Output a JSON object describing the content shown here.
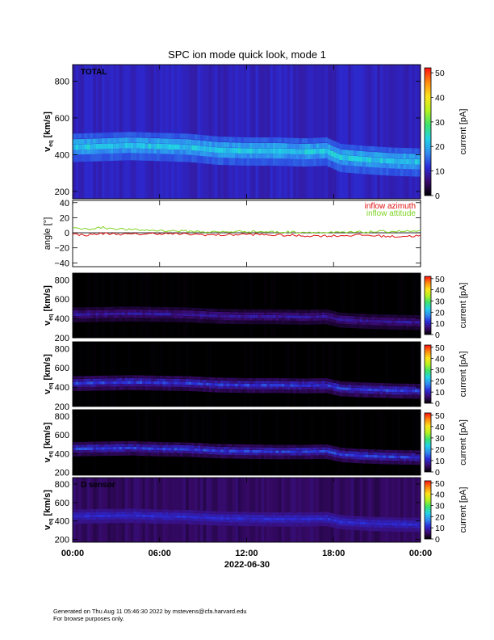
{
  "title": "SPC ion mode quick look, mode 1",
  "footer": {
    "line1": "Generated on Thu Aug 11 05:46:30 2022 by mstevens@cfa.harvard.edu",
    "line2": "For browse purposes only."
  },
  "colors": {
    "azimuth": "#e01010",
    "attitude": "#7ed321",
    "colormap": [
      "#000000",
      "#3a0a6e",
      "#2c2bd8",
      "#2f8df0",
      "#22d3e6",
      "#3de36a",
      "#b6f21e",
      "#ffe31a",
      "#ff8a10",
      "#ff1010"
    ]
  },
  "chart_data": [
    {
      "type": "heatmap",
      "panel": "total",
      "label": "TOTAL",
      "ylabel_main": "v",
      "ylabel_sub": "eq",
      "ylabel_unit": "[km/s]",
      "yticks": [
        "200",
        "400",
        "600",
        "800"
      ],
      "ylim": [
        160,
        890
      ],
      "colorbar": {
        "label": "current [pA]",
        "ticks": [
          "0",
          "10",
          "20",
          "30",
          "40",
          "50"
        ],
        "range": [
          0,
          52
        ]
      },
      "speed_trace_kms": [
        [
          0,
          440
        ],
        [
          2,
          445
        ],
        [
          4,
          450
        ],
        [
          6,
          445
        ],
        [
          8,
          440
        ],
        [
          10,
          425
        ],
        [
          12,
          420
        ],
        [
          14,
          420
        ],
        [
          16,
          415
        ],
        [
          17.5,
          420
        ],
        [
          18.5,
          385
        ],
        [
          20,
          375
        ],
        [
          22,
          365
        ],
        [
          24,
          360
        ]
      ],
      "background_pA": 10,
      "peak_pA": 22
    },
    {
      "type": "line",
      "panel": "angle",
      "ylabel": "angle [°]",
      "yticks": [
        "−40",
        "−20",
        "0",
        "20",
        "40"
      ],
      "ylim": [
        -45,
        43
      ],
      "legend_placement": "top-right",
      "series": [
        {
          "name": "inflow azimuth",
          "color": "#e01010",
          "x": [
            0,
            1,
            2,
            4,
            6,
            8,
            10,
            12,
            14,
            16,
            18,
            20,
            22,
            24
          ],
          "values": [
            -2,
            -3,
            -1,
            -2,
            -1,
            -2,
            -3,
            -2,
            -3,
            -4,
            -4,
            -3,
            -5,
            -4
          ]
        },
        {
          "name": "inflow attitude",
          "color": "#7ed321",
          "x": [
            0,
            1,
            2,
            4,
            6,
            8,
            10,
            12,
            14,
            16,
            18,
            20,
            22,
            24
          ],
          "values": [
            6,
            5,
            7,
            4,
            3,
            2,
            1,
            2,
            1,
            1,
            0,
            1,
            2,
            2
          ]
        }
      ]
    },
    {
      "type": "heatmap",
      "panel": "sensor-a",
      "label": "",
      "ylabel_main": "v",
      "ylabel_sub": "eq",
      "ylabel_unit": "[km/s]",
      "yticks": [
        "200",
        "400",
        "600",
        "800"
      ],
      "ylim": [
        200,
        870
      ],
      "colorbar": {
        "label": "current [pA]",
        "ticks": [
          "0",
          "10",
          "20",
          "30",
          "40",
          "50"
        ],
        "range": [
          0,
          52
        ]
      },
      "speed_trace_kms": [
        [
          0,
          440
        ],
        [
          2,
          445
        ],
        [
          4,
          450
        ],
        [
          6,
          445
        ],
        [
          8,
          440
        ],
        [
          10,
          425
        ],
        [
          12,
          420
        ],
        [
          14,
          420
        ],
        [
          16,
          415
        ],
        [
          17.5,
          420
        ],
        [
          18.5,
          385
        ],
        [
          20,
          375
        ],
        [
          22,
          365
        ],
        [
          24,
          360
        ]
      ],
      "background_pA": 0,
      "peak_pA": 8
    },
    {
      "type": "heatmap",
      "panel": "sensor-b",
      "label": "",
      "ylabel_main": "v",
      "ylabel_sub": "eq",
      "ylabel_unit": "[km/s]",
      "yticks": [
        "200",
        "400",
        "600",
        "800"
      ],
      "ylim": [
        200,
        870
      ],
      "colorbar": {
        "label": "current [pA]",
        "ticks": [
          "0",
          "10",
          "20",
          "30",
          "40",
          "50"
        ],
        "range": [
          0,
          52
        ]
      },
      "speed_trace_kms": [
        [
          0,
          440
        ],
        [
          2,
          445
        ],
        [
          4,
          450
        ],
        [
          6,
          445
        ],
        [
          8,
          440
        ],
        [
          10,
          425
        ],
        [
          12,
          420
        ],
        [
          14,
          420
        ],
        [
          16,
          415
        ],
        [
          17.5,
          420
        ],
        [
          18.5,
          385
        ],
        [
          20,
          375
        ],
        [
          22,
          365
        ],
        [
          24,
          360
        ]
      ],
      "background_pA": 0,
      "peak_pA": 12
    },
    {
      "type": "heatmap",
      "panel": "sensor-c",
      "label": "",
      "ylabel_main": "v",
      "ylabel_sub": "eq",
      "ylabel_unit": "[km/s]",
      "yticks": [
        "200",
        "400",
        "600",
        "800"
      ],
      "ylim": [
        170,
        870
      ],
      "colorbar": {
        "label": "current [pA]",
        "ticks": [
          "0",
          "10",
          "20",
          "30",
          "40",
          "50"
        ],
        "range": [
          0,
          52
        ]
      },
      "speed_trace_kms": [
        [
          0,
          450
        ],
        [
          2,
          455
        ],
        [
          4,
          460
        ],
        [
          6,
          450
        ],
        [
          8,
          445
        ],
        [
          10,
          430
        ],
        [
          12,
          425
        ],
        [
          14,
          420
        ],
        [
          16,
          420
        ],
        [
          17.5,
          425
        ],
        [
          18.5,
          390
        ],
        [
          20,
          375
        ],
        [
          22,
          365
        ],
        [
          24,
          360
        ]
      ],
      "background_pA": 0,
      "peak_pA": 12
    },
    {
      "type": "heatmap",
      "panel": "sensor-d",
      "label": "D sensor",
      "ylabel_main": "v",
      "ylabel_sub": "eq",
      "ylabel_unit": "[km/s]",
      "yticks": [
        "200",
        "400",
        "600",
        "800"
      ],
      "ylim": [
        170,
        870
      ],
      "colorbar": {
        "label": "current [pA]",
        "ticks": [
          "0",
          "10",
          "20",
          "30",
          "40",
          "50"
        ],
        "range": [
          0,
          52
        ]
      },
      "speed_trace_kms": [
        [
          0,
          450
        ],
        [
          2,
          455
        ],
        [
          4,
          460
        ],
        [
          6,
          450
        ],
        [
          8,
          445
        ],
        [
          10,
          430
        ],
        [
          12,
          425
        ],
        [
          14,
          420
        ],
        [
          16,
          420
        ],
        [
          17.5,
          425
        ],
        [
          18.5,
          390
        ],
        [
          20,
          375
        ],
        [
          22,
          365
        ],
        [
          24,
          360
        ]
      ],
      "background_pA": 5,
      "peak_pA": 11
    }
  ],
  "x_axis": {
    "ticks": [
      "00:00",
      "06:00",
      "12:00",
      "18:00",
      "00:00"
    ],
    "tick_hours": [
      0,
      6,
      12,
      18,
      24
    ],
    "date_label": "2022-06-30",
    "range_hours": [
      0,
      24
    ]
  }
}
